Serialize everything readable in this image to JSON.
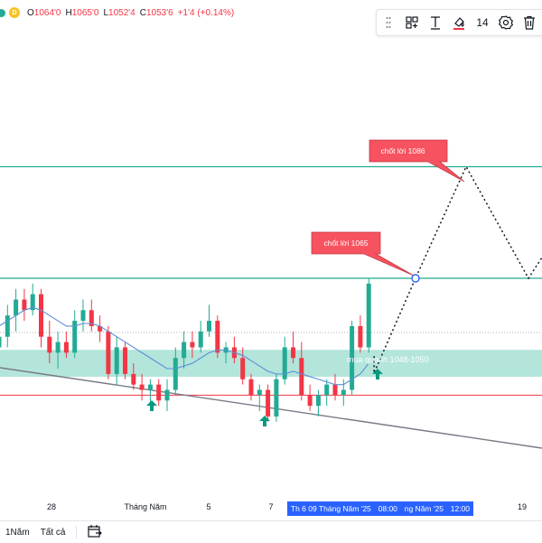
{
  "legend": {
    "interval_badge": "D",
    "open_label": "O",
    "open": "1064'0",
    "high_label": "H",
    "high": "1065'0",
    "low_label": "L",
    "low": "1052'4",
    "close_label": "C",
    "close": "1053'6",
    "change": "+1'4 (+0.14%)"
  },
  "toolbar": {
    "text_tool": "T",
    "font_size": "14"
  },
  "annotations": {
    "callout_upper": "chốt lời 1086",
    "callout_lower": "chốt lời 1065",
    "zone_label": "mua quanh 1048-1050"
  },
  "xaxis": {
    "labels": [
      "28",
      "Tháng Năm",
      "5",
      "7",
      "19"
    ],
    "crosshair": [
      "Th 6 09 Tháng Năm '25",
      "08:00",
      "ng Năm '25",
      "12:00"
    ]
  },
  "bottombar": {
    "range_1y": "1Năm",
    "range_all": "Tất cả"
  },
  "colors": {
    "up": "#22ab94",
    "down": "#f23645",
    "zone": "#a6e0d5",
    "ma": "#5b8fd6",
    "callout": "#f7525f",
    "crosshair": "#2962ff"
  },
  "icons": [
    "dots-vertical-icon",
    "add-object-icon",
    "text-tool-icon",
    "fill-color-icon",
    "settings-icon",
    "trash-icon",
    "cycle-icon"
  ],
  "chart_data": {
    "type": "candlestick",
    "series": [
      {
        "name": "",
        "ohlc": [
          [
            1052,
            1056,
            1048,
            1054
          ],
          [
            1054,
            1060,
            1052,
            1058
          ],
          [
            1058,
            1063,
            1055,
            1061
          ],
          [
            1061,
            1063,
            1057,
            1059
          ],
          [
            1059,
            1064,
            1058,
            1062
          ],
          [
            1062,
            1063,
            1052,
            1054
          ],
          [
            1054,
            1057,
            1049,
            1051
          ],
          [
            1051,
            1055,
            1048,
            1053
          ],
          [
            1053,
            1055,
            1050,
            1051
          ],
          [
            1051,
            1059,
            1050,
            1057
          ],
          [
            1057,
            1061,
            1055,
            1059
          ],
          [
            1059,
            1061,
            1055,
            1056
          ],
          [
            1056,
            1058,
            1053,
            1055
          ],
          [
            1055,
            1056,
            1046,
            1047
          ],
          [
            1047,
            1054,
            1045,
            1052
          ],
          [
            1052,
            1053,
            1046,
            1047
          ],
          [
            1047,
            1049,
            1044,
            1045
          ],
          [
            1045,
            1047,
            1042,
            1044
          ],
          [
            1044,
            1046,
            1041,
            1045
          ],
          [
            1045,
            1046,
            1041,
            1042
          ],
          [
            1042,
            1046,
            1040,
            1044
          ],
          [
            1044,
            1052,
            1043,
            1050
          ],
          [
            1050,
            1055,
            1048,
            1053
          ],
          [
            1053,
            1055,
            1050,
            1052
          ],
          [
            1052,
            1057,
            1051,
            1055
          ],
          [
            1055,
            1060,
            1054,
            1057
          ],
          [
            1057,
            1058,
            1050,
            1051
          ],
          [
            1051,
            1053,
            1049,
            1052
          ],
          [
            1052,
            1054,
            1049,
            1050
          ],
          [
            1050,
            1052,
            1045,
            1046
          ],
          [
            1046,
            1047,
            1042,
            1043
          ],
          [
            1043,
            1045,
            1040,
            1044
          ],
          [
            1044,
            1045,
            1038,
            1039
          ],
          [
            1039,
            1047,
            1038,
            1046
          ],
          [
            1046,
            1054,
            1045,
            1052
          ],
          [
            1052,
            1055,
            1049,
            1050
          ],
          [
            1050,
            1053,
            1042,
            1043
          ],
          [
            1043,
            1045,
            1040,
            1041
          ],
          [
            1041,
            1044,
            1039,
            1043
          ],
          [
            1043,
            1046,
            1041,
            1045
          ],
          [
            1045,
            1047,
            1042,
            1043
          ],
          [
            1043,
            1046,
            1041,
            1044
          ],
          [
            1044,
            1057,
            1043,
            1056
          ],
          [
            1056,
            1058,
            1051,
            1052
          ],
          [
            1052,
            1065,
            1051,
            1064
          ]
        ]
      },
      {
        "name": "",
        "type": "line",
        "values": [
          1056,
          1057,
          1058,
          1059,
          1059.5,
          1059,
          1058,
          1057,
          1056,
          1056,
          1056.5,
          1056.5,
          1056,
          1055,
          1054,
          1053,
          1052,
          1051,
          1050,
          1049,
          1048,
          1048,
          1048.5,
          1049,
          1050,
          1051,
          1051.5,
          1051.5,
          1051,
          1050.5,
          1049.5,
          1048.5,
          1047.5,
          1047,
          1047,
          1047.5,
          1047,
          1046.5,
          1046,
          1045.5,
          1045,
          1045,
          1046,
          1047,
          1049
        ]
      }
    ],
    "price_levels": [
      {
        "label": "chốt lời 1086",
        "value": 1086
      },
      {
        "label": "chốt lời 1065",
        "value": 1065
      }
    ],
    "zones": [
      {
        "label": "mua quanh 1048-1050",
        "from": 1048,
        "to": 1050
      }
    ],
    "support_line": 1043,
    "projection": [
      [
        1065,
        "rise"
      ],
      [
        1086,
        "peak"
      ],
      [
        1065,
        "return"
      ]
    ]
  }
}
